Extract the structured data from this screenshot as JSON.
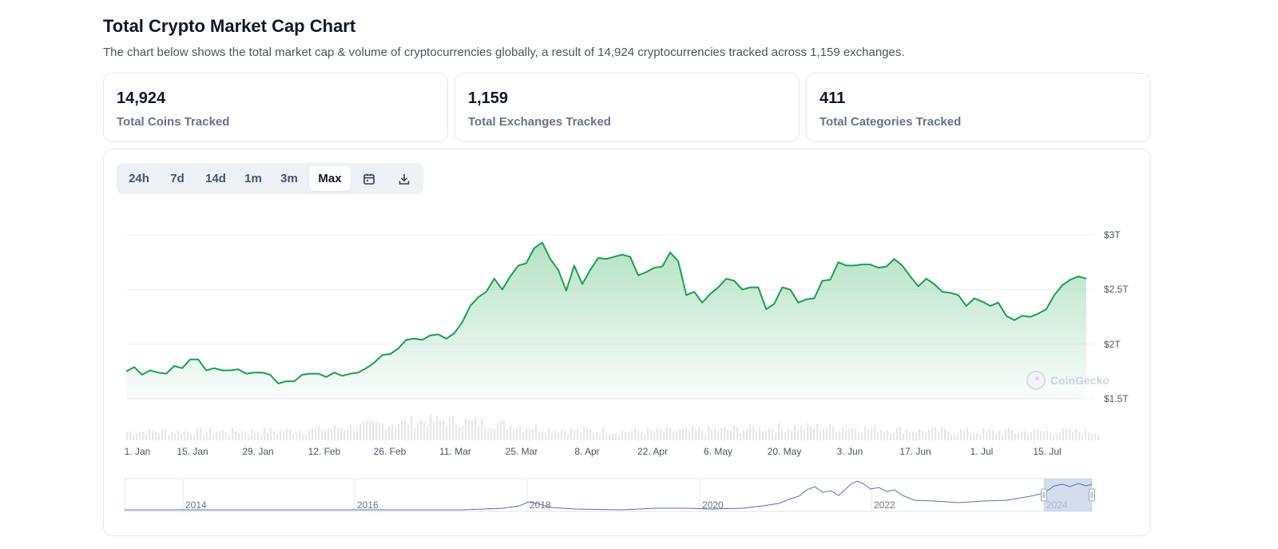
{
  "header": {
    "title": "Total Crypto Market Cap Chart",
    "description": "The chart below shows the total market cap & volume of cryptocurrencies globally, a result of 14,924 cryptocurrencies tracked across 1,159 exchanges."
  },
  "stats": [
    {
      "value": "14,924",
      "label": "Total Coins Tracked"
    },
    {
      "value": "1,159",
      "label": "Total Exchanges Tracked"
    },
    {
      "value": "411",
      "label": "Total Categories Tracked"
    }
  ],
  "toolbar": {
    "ranges": [
      "24h",
      "7d",
      "14d",
      "1m",
      "3m",
      "Max"
    ],
    "active_range": "Max",
    "icons": [
      "calendar-icon",
      "download-icon"
    ]
  },
  "watermark": "CoinGecko",
  "colors": {
    "line": "#16a34a",
    "area_top": "#16a34a",
    "volume_bars": "#e5e7eb",
    "navigator_line": "#4f6fb8",
    "navigator_selection": "#c5d1ea"
  },
  "chart_data": {
    "type": "area",
    "title": "",
    "x_ticks": [
      "1. Jan",
      "15. Jan",
      "29. Jan",
      "12. Feb",
      "26. Feb",
      "11. Mar",
      "25. Mar",
      "8. Apr",
      "22. Apr",
      "6. May",
      "20. May",
      "3. Jun",
      "17. Jun",
      "1. Jul",
      "15. Jul"
    ],
    "y_ticks": [
      "$1.5T",
      "$2T",
      "$2.5T",
      "$3T"
    ],
    "ylim": [
      1.5,
      3.0
    ],
    "y_unit": "trillion USD",
    "series": [
      {
        "values": [
          1.75,
          1.79,
          1.72,
          1.76,
          1.74,
          1.73,
          1.8,
          1.78,
          1.86,
          1.86,
          1.76,
          1.78,
          1.76,
          1.76,
          1.77,
          1.73,
          1.74,
          1.74,
          1.72,
          1.64,
          1.66,
          1.66,
          1.72,
          1.73,
          1.73,
          1.7,
          1.74,
          1.71,
          1.73,
          1.74,
          1.78,
          1.83,
          1.9,
          1.91,
          1.96,
          2.04,
          2.05,
          2.04,
          2.08,
          2.09,
          2.05,
          2.1,
          2.2,
          2.35,
          2.43,
          2.48,
          2.6,
          2.5,
          2.62,
          2.72,
          2.74,
          2.88,
          2.93,
          2.78,
          2.68,
          2.49,
          2.72,
          2.55,
          2.68,
          2.79,
          2.78,
          2.8,
          2.82,
          2.8,
          2.63,
          2.66,
          2.7,
          2.71,
          2.84,
          2.76,
          2.45,
          2.48,
          2.38,
          2.46,
          2.52,
          2.6,
          2.58,
          2.5,
          2.52,
          2.52,
          2.32,
          2.37,
          2.52,
          2.5,
          2.38,
          2.41,
          2.42,
          2.58,
          2.59,
          2.75,
          2.72,
          2.72,
          2.73,
          2.73,
          2.7,
          2.71,
          2.78,
          2.72,
          2.62,
          2.53,
          2.6,
          2.55,
          2.48,
          2.47,
          2.45,
          2.35,
          2.42,
          2.39,
          2.35,
          2.38,
          2.26,
          2.22,
          2.26,
          2.25,
          2.28,
          2.32,
          2.45,
          2.54,
          2.59,
          2.62,
          2.6
        ]
      }
    ],
    "volume_bars_shown": true,
    "navigator": {
      "x_ticks": [
        "2014",
        "2016",
        "2018",
        "2020",
        "2022",
        "2024"
      ],
      "selected_range": "2024"
    },
    "grid": true,
    "legend": "none"
  }
}
